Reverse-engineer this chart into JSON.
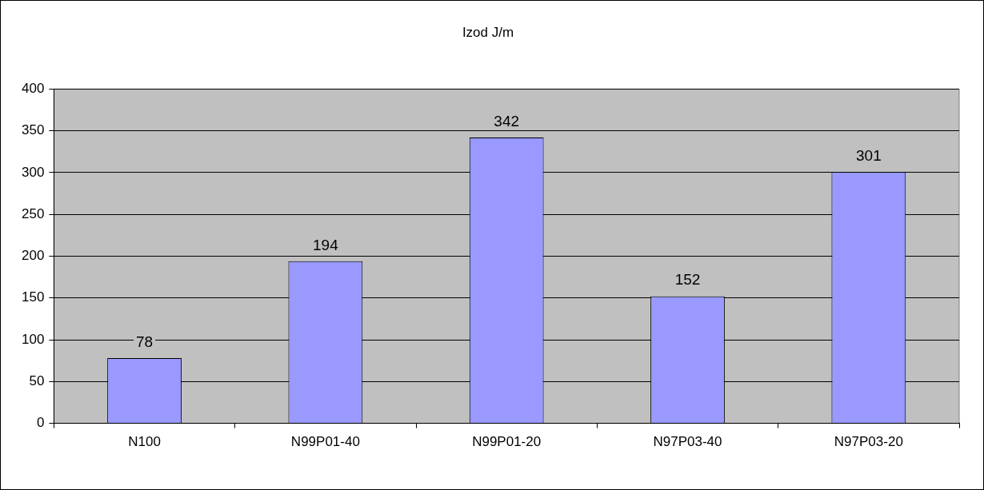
{
  "chart_data": {
    "type": "bar",
    "title": "Izod J/m",
    "categories": [
      "N100",
      "N99P01-40",
      "N99P01-20",
      "N97P03-40",
      "N97P03-20"
    ],
    "values": [
      78,
      194,
      342,
      152,
      301
    ],
    "color": "#9999ff",
    "ylim": [
      0,
      400
    ],
    "yticks": [
      0,
      50,
      100,
      150,
      200,
      250,
      300,
      350,
      400
    ],
    "grid": "y",
    "data_labels": true,
    "legend": false
  }
}
